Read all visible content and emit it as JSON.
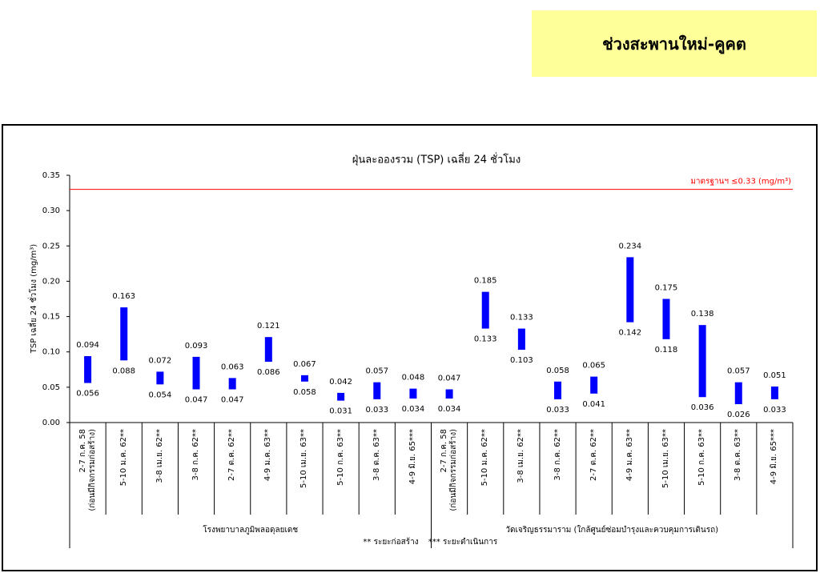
{
  "header": {
    "title": "ช่วงสะพานใหม่-คูคต"
  },
  "chart_data": {
    "type": "range_bar",
    "title": "ฝุ่นละอองรวม (TSP) เฉลี่ย 24 ชั่วโมง",
    "y_label": "TSP เฉลี่ย 24 ชั่วโมง (mg/m³)",
    "color": "#0000ff",
    "ylim": [
      0,
      0.35
    ],
    "yticks": [
      {
        "value": 0,
        "label": "0.00"
      },
      0.05,
      {
        "value": 0.1,
        "label": "0.10"
      },
      0.15,
      {
        "value": 0.2,
        "label": "0.20"
      },
      0.25,
      {
        "value": 0.3,
        "label": "0.30"
      },
      0.35
    ],
    "reference_line": {
      "value": 0.33,
      "label": "มาตรฐานฯ ≤0.33 (mg/m³)",
      "color": "#ff0000"
    },
    "groups": [
      {
        "name": "โรงพยาบาลภูมิพลอดุลยเดช",
        "categories": [
          "2-7 ก.ค. 58\n(ก่อนมีกิจกรรมก่อสร้าง)",
          "5-10 ม.ค. 62**",
          "3-8 เม.ย. 62**",
          "3-8 ก.ค. 62**",
          "2-7 ต.ค. 62**",
          "4-9 ม.ค. 63**",
          "5-10 เม.ย. 63**",
          "5-10 ก.ค. 63**",
          "3-8 ต.ค. 63**",
          "4-9 มิ.ย. 65***"
        ],
        "high": [
          0.094,
          0.163,
          0.072,
          0.093,
          0.063,
          0.121,
          0.067,
          0.042,
          0.057,
          0.048
        ],
        "low": [
          0.056,
          0.088,
          0.054,
          0.047,
          0.047,
          0.086,
          0.058,
          0.031,
          0.033,
          0.034
        ]
      },
      {
        "name": "วัดเจริญธรรมาราม (ใกล้ศูนย์ซ่อมบำรุงและควบคุมการเดินรถ)",
        "categories": [
          "2-7 ก.ค. 58\n(ก่อนมีกิจกรรมก่อสร้าง)",
          "5-10 ม.ค. 62**",
          "3-8 เม.ย. 62**",
          "3-8 ก.ค. 62**",
          "2-7 ต.ค. 62**",
          "4-9 ม.ค. 63**",
          "5-10 เม.ย. 63**",
          "5-10 ก.ค. 63**",
          "3-8 ต.ค. 63**",
          "4-9 มิ.ย. 65***"
        ],
        "high": [
          0.047,
          0.185,
          0.133,
          0.058,
          0.065,
          0.234,
          0.175,
          0.138,
          0.057,
          0.051
        ],
        "low": [
          0.034,
          0.133,
          0.103,
          0.033,
          0.041,
          0.142,
          0.118,
          0.036,
          0.026,
          0.033
        ]
      }
    ],
    "footnotes": [
      "** ระยะก่อสร้าง",
      "*** ระยะดำเนินการ"
    ]
  }
}
